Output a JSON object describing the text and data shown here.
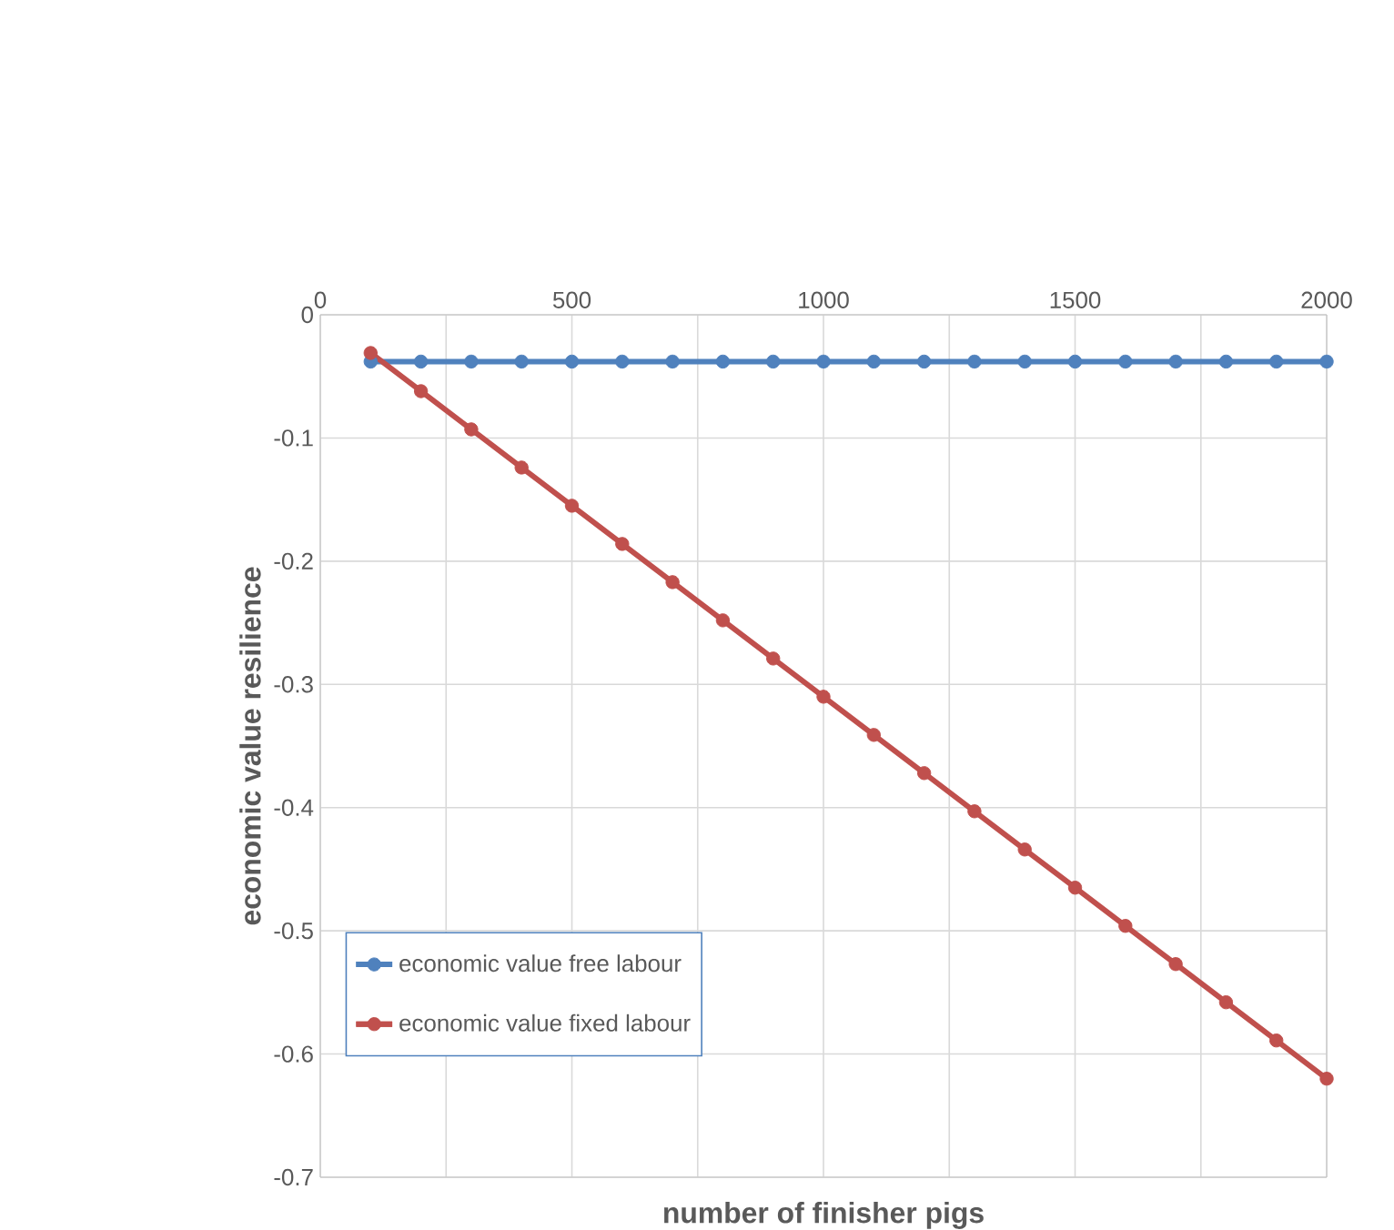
{
  "chart_data": {
    "type": "line",
    "xlabel": "number of finisher pigs",
    "ylabel": "economic value resilience",
    "x": [
      100,
      200,
      300,
      400,
      500,
      600,
      700,
      800,
      900,
      1000,
      1100,
      1200,
      1300,
      1400,
      1500,
      1600,
      1700,
      1800,
      1900,
      2000
    ],
    "series": [
      {
        "name": "economic value free labour",
        "color": "#4f81bd",
        "values": [
          -0.038,
          -0.038,
          -0.038,
          -0.038,
          -0.038,
          -0.038,
          -0.038,
          -0.038,
          -0.038,
          -0.038,
          -0.038,
          -0.038,
          -0.038,
          -0.038,
          -0.038,
          -0.038,
          -0.038,
          -0.038,
          -0.038,
          -0.038
        ]
      },
      {
        "name": "economic value fixed labour",
        "color": "#c0504d",
        "values": [
          -0.031,
          -0.062,
          -0.093,
          -0.124,
          -0.155,
          -0.186,
          -0.217,
          -0.248,
          -0.279,
          -0.31,
          -0.341,
          -0.372,
          -0.403,
          -0.434,
          -0.465,
          -0.496,
          -0.527,
          -0.558,
          -0.589,
          -0.62
        ]
      }
    ],
    "xlim": [
      0,
      2000
    ],
    "ylim": [
      -0.7,
      0
    ],
    "xticks": [
      0,
      {
        "value": 250,
        "label": null
      },
      500,
      {
        "value": 750,
        "label": null
      },
      1000,
      {
        "value": 1250,
        "label": null
      },
      1500,
      {
        "value": 1750,
        "label": null
      },
      2000
    ],
    "yticks": [
      -0.7,
      -0.6,
      -0.5,
      -0.4,
      -0.3,
      -0.2,
      -0.1,
      0
    ],
    "grid": true,
    "legend": "bottom left",
    "marker": "circle",
    "line_style": "solid"
  }
}
